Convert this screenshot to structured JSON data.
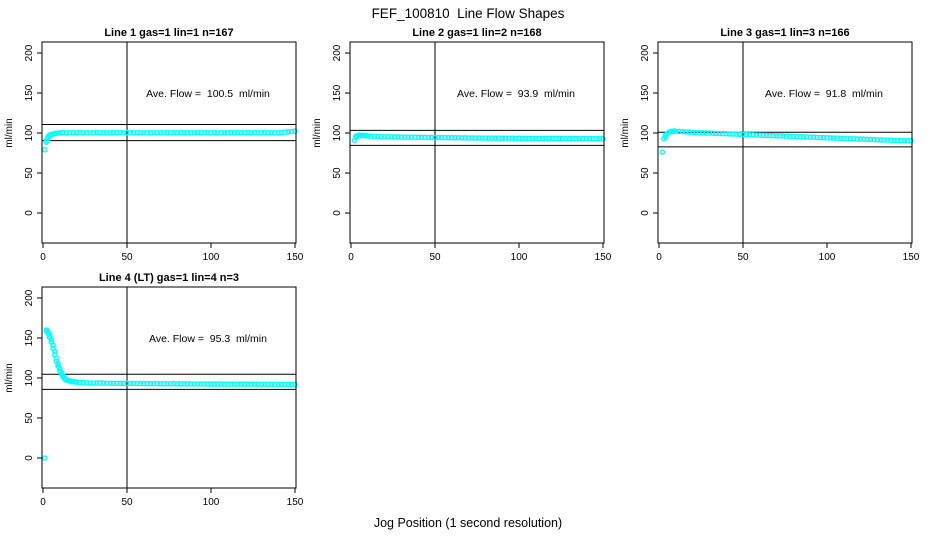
{
  "title": "FEF_100810  Line Flow Shapes",
  "xlabel": "Jog Position (1 second resolution)",
  "point_color": "#00ffff",
  "axis_color": "#000000",
  "chart_data": [
    {
      "type": "scatter",
      "title": "Line 1 gas=1 lin=1 n=167",
      "n": 167,
      "annotation": "Ave. Flow =  100.5  ml/min",
      "ave_flow_ml_min": 100.5,
      "ylabel": "ml/min",
      "xticks": [
        0,
        50,
        100,
        150
      ],
      "yticks": [
        0,
        50,
        100,
        150,
        200
      ],
      "xlim": [
        0,
        150
      ],
      "ylim": [
        0,
        200
      ],
      "grid": false,
      "ref_vline": 50,
      "ref_hlines": [
        110.6,
        90.5
      ],
      "points": [
        [
          1,
          79
        ],
        [
          2,
          88.5
        ],
        [
          2,
          90.5
        ],
        [
          3,
          93
        ],
        [
          3,
          95
        ],
        [
          4,
          96.5
        ],
        [
          4,
          97.5
        ],
        [
          5,
          98
        ],
        [
          6,
          98.8
        ],
        [
          7,
          99.3
        ],
        [
          8,
          99.7
        ],
        [
          9,
          100
        ],
        [
          10,
          100.2
        ],
        [
          12,
          100.5
        ],
        [
          14,
          100.1
        ],
        [
          16,
          100.4
        ],
        [
          18,
          100.3
        ],
        [
          20,
          100.2
        ],
        [
          22,
          100.5
        ],
        [
          24,
          100.1
        ],
        [
          26,
          100.4
        ],
        [
          28,
          100.3
        ],
        [
          30,
          100.2
        ],
        [
          32,
          100.5
        ],
        [
          34,
          100.1
        ],
        [
          36,
          100.4
        ],
        [
          38,
          100.3
        ],
        [
          40,
          100.2
        ],
        [
          42,
          100.5
        ],
        [
          44,
          100.1
        ],
        [
          46,
          100.4
        ],
        [
          48,
          100.3
        ],
        [
          50,
          100.2
        ],
        [
          52,
          100.5
        ],
        [
          54,
          100.1
        ],
        [
          56,
          100.4
        ],
        [
          58,
          100.3
        ],
        [
          60,
          100.2
        ],
        [
          62,
          100.5
        ],
        [
          64,
          100.1
        ],
        [
          66,
          100.4
        ],
        [
          68,
          100.3
        ],
        [
          70,
          100.2
        ],
        [
          72,
          100.5
        ],
        [
          74,
          100.1
        ],
        [
          76,
          100.4
        ],
        [
          78,
          100.3
        ],
        [
          80,
          100.2
        ],
        [
          82,
          100.5
        ],
        [
          84,
          100.1
        ],
        [
          86,
          100.4
        ],
        [
          88,
          100.3
        ],
        [
          90,
          100.2
        ],
        [
          92,
          100.5
        ],
        [
          94,
          100.1
        ],
        [
          96,
          100.4
        ],
        [
          98,
          100.3
        ],
        [
          100,
          100.2
        ],
        [
          102,
          100.5
        ],
        [
          104,
          100.1
        ],
        [
          106,
          100.4
        ],
        [
          108,
          100.3
        ],
        [
          110,
          100.2
        ],
        [
          112,
          100.5
        ],
        [
          114,
          100.1
        ],
        [
          116,
          100.4
        ],
        [
          118,
          100.3
        ],
        [
          120,
          100.2
        ],
        [
          122,
          100.5
        ],
        [
          124,
          100.1
        ],
        [
          126,
          100.4
        ],
        [
          128,
          100.3
        ],
        [
          130,
          100.2
        ],
        [
          132,
          100.5
        ],
        [
          134,
          100.1
        ],
        [
          136,
          100.4
        ],
        [
          138,
          100.3
        ],
        [
          140,
          100.3
        ],
        [
          142,
          100.6
        ],
        [
          144,
          100.9
        ],
        [
          146,
          101.4
        ],
        [
          148,
          101.9
        ],
        [
          150,
          102.4
        ]
      ]
    },
    {
      "type": "scatter",
      "title": "Line 2 gas=1 lin=2 n=168",
      "n": 168,
      "annotation": "Ave. Flow =  93.9  ml/min",
      "ave_flow_ml_min": 93.9,
      "ylabel": "ml/min",
      "xticks": [
        0,
        50,
        100,
        150
      ],
      "yticks": [
        0,
        50,
        100,
        150,
        200
      ],
      "xlim": [
        0,
        150
      ],
      "ylim": [
        0,
        200
      ],
      "grid": false,
      "ref_vline": 50,
      "ref_hlines": [
        103.3,
        84.5
      ],
      "points": [
        [
          2,
          91
        ],
        [
          3,
          94.5
        ],
        [
          3,
          96
        ],
        [
          4,
          96.8
        ],
        [
          5,
          97.2
        ],
        [
          6,
          97.1
        ],
        [
          7,
          96.9
        ],
        [
          8,
          96.7
        ],
        [
          9,
          96.5
        ],
        [
          10,
          96.3
        ],
        [
          12,
          96.1
        ],
        [
          14,
          95.9
        ],
        [
          16,
          95.7
        ],
        [
          18,
          95.5
        ],
        [
          20,
          95.3
        ],
        [
          22,
          95.1
        ],
        [
          24,
          95.2
        ],
        [
          26,
          94.9
        ],
        [
          28,
          95
        ],
        [
          30,
          94.8
        ],
        [
          32,
          94.9
        ],
        [
          34,
          94.7
        ],
        [
          36,
          94.8
        ],
        [
          38,
          94.6
        ],
        [
          40,
          94.7
        ],
        [
          42,
          94.5
        ],
        [
          44,
          94.6
        ],
        [
          46,
          94.4
        ],
        [
          48,
          94.5
        ],
        [
          50,
          94.3
        ],
        [
          52,
          94.4
        ],
        [
          54,
          94.2
        ],
        [
          56,
          94.3
        ],
        [
          58,
          94.1
        ],
        [
          60,
          94.2
        ],
        [
          62,
          94
        ],
        [
          64,
          94.1
        ],
        [
          66,
          93.9
        ],
        [
          68,
          94
        ],
        [
          70,
          93.8
        ],
        [
          72,
          93.9
        ],
        [
          74,
          93.7
        ],
        [
          76,
          93.8
        ],
        [
          78,
          93.6
        ],
        [
          80,
          93.7
        ],
        [
          82,
          93.5
        ],
        [
          84,
          93.6
        ],
        [
          86,
          93.5
        ],
        [
          88,
          93.6
        ],
        [
          90,
          93.4
        ],
        [
          92,
          93.5
        ],
        [
          94,
          93.4
        ],
        [
          96,
          93.5
        ],
        [
          98,
          93.3
        ],
        [
          100,
          93.4
        ],
        [
          102,
          93.3
        ],
        [
          104,
          93.4
        ],
        [
          106,
          93.2
        ],
        [
          108,
          93.3
        ],
        [
          110,
          93.2
        ],
        [
          112,
          93.3
        ],
        [
          114,
          93.1
        ],
        [
          116,
          93.2
        ],
        [
          118,
          93.1
        ],
        [
          120,
          93.2
        ],
        [
          122,
          93
        ],
        [
          124,
          93.1
        ],
        [
          126,
          93
        ],
        [
          128,
          93.1
        ],
        [
          130,
          93
        ],
        [
          132,
          93.1
        ],
        [
          134,
          92.9
        ],
        [
          136,
          93
        ],
        [
          138,
          92.9
        ],
        [
          140,
          93
        ],
        [
          142,
          92.9
        ],
        [
          144,
          93
        ],
        [
          146,
          92.9
        ],
        [
          148,
          93
        ],
        [
          150,
          92.9
        ]
      ]
    },
    {
      "type": "scatter",
      "title": "Line 3 gas=1 lin=3 n=166",
      "n": 166,
      "annotation": "Ave. Flow =  91.8  ml/min",
      "ave_flow_ml_min": 91.8,
      "ylabel": "ml/min",
      "xticks": [
        0,
        50,
        100,
        150
      ],
      "yticks": [
        0,
        50,
        100,
        150,
        200
      ],
      "xlim": [
        0,
        150
      ],
      "ylim": [
        0,
        200
      ],
      "grid": false,
      "ref_vline": 50,
      "ref_hlines": [
        101.0,
        82.6
      ],
      "points": [
        [
          2,
          76
        ],
        [
          3,
          93
        ],
        [
          4,
          95
        ],
        [
          4,
          97.5
        ],
        [
          5,
          99.5
        ],
        [
          6,
          101
        ],
        [
          7,
          101.8
        ],
        [
          8,
          102.2
        ],
        [
          9,
          102.4
        ],
        [
          10,
          102.3
        ],
        [
          12,
          102
        ],
        [
          14,
          101.7
        ],
        [
          16,
          101.4
        ],
        [
          18,
          101.1
        ],
        [
          20,
          100.8
        ],
        [
          22,
          100.5
        ],
        [
          24,
          100.3
        ],
        [
          26,
          100.2
        ],
        [
          28,
          100
        ],
        [
          30,
          99.9
        ],
        [
          32,
          99.7
        ],
        [
          34,
          99.5
        ],
        [
          36,
          99.4
        ],
        [
          38,
          99.2
        ],
        [
          40,
          99
        ],
        [
          42,
          98.9
        ],
        [
          44,
          98.7
        ],
        [
          46,
          98.5
        ],
        [
          48,
          98.4
        ],
        [
          50,
          98.2
        ],
        [
          52,
          98
        ],
        [
          54,
          97.9
        ],
        [
          56,
          97.7
        ],
        [
          58,
          97.5
        ],
        [
          60,
          97.4
        ],
        [
          62,
          97.2
        ],
        [
          64,
          97
        ],
        [
          66,
          96.9
        ],
        [
          68,
          96.7
        ],
        [
          70,
          96.5
        ],
        [
          72,
          96.4
        ],
        [
          74,
          96.2
        ],
        [
          76,
          96
        ],
        [
          78,
          95.9
        ],
        [
          80,
          95.7
        ],
        [
          82,
          95.5
        ],
        [
          84,
          95.4
        ],
        [
          86,
          95.2
        ],
        [
          88,
          95
        ],
        [
          90,
          94.9
        ],
        [
          92,
          94.7
        ],
        [
          94,
          94.5
        ],
        [
          96,
          94.4
        ],
        [
          98,
          94.2
        ],
        [
          100,
          94
        ],
        [
          102,
          93.9
        ],
        [
          104,
          93.7
        ],
        [
          106,
          93.5
        ],
        [
          108,
          93.4
        ],
        [
          110,
          93.2
        ],
        [
          112,
          93
        ],
        [
          114,
          92.9
        ],
        [
          116,
          92.7
        ],
        [
          118,
          92.5
        ],
        [
          120,
          92.4
        ],
        [
          122,
          92.2
        ],
        [
          124,
          92
        ],
        [
          126,
          91.9
        ],
        [
          128,
          91.7
        ],
        [
          130,
          91.5
        ],
        [
          132,
          91.4
        ],
        [
          134,
          91.2
        ],
        [
          136,
          91
        ],
        [
          138,
          90.9
        ],
        [
          140,
          90.7
        ],
        [
          142,
          90.6
        ],
        [
          144,
          90.5
        ],
        [
          146,
          90.4
        ],
        [
          148,
          90.4
        ],
        [
          150,
          90.4
        ]
      ]
    },
    {
      "type": "scatter",
      "title": "Line 4 (LT) gas=1 lin=4 n=3",
      "n": 3,
      "annotation": "Ave. Flow =  95.3  ml/min",
      "ave_flow_ml_min": 95.3,
      "ylabel": "ml/min",
      "xticks": [
        0,
        50,
        100,
        150
      ],
      "yticks": [
        0,
        50,
        100,
        150,
        200
      ],
      "xlim": [
        0,
        150
      ],
      "ylim": [
        0,
        200
      ],
      "grid": false,
      "ref_vline": 50,
      "ref_hlines": [
        104.8,
        85.8
      ],
      "points": [
        [
          1,
          0
        ],
        [
          2,
          160
        ],
        [
          2,
          159
        ],
        [
          3,
          158
        ],
        [
          3,
          156
        ],
        [
          4,
          154
        ],
        [
          4,
          151
        ],
        [
          5,
          148
        ],
        [
          5,
          145
        ],
        [
          6,
          141
        ],
        [
          6,
          137
        ],
        [
          7,
          133
        ],
        [
          7,
          129
        ],
        [
          8,
          125
        ],
        [
          8,
          121
        ],
        [
          9,
          118
        ],
        [
          9,
          115
        ],
        [
          10,
          112
        ],
        [
          10,
          109
        ],
        [
          11,
          106.5
        ],
        [
          11,
          104.5
        ],
        [
          12,
          102.5
        ],
        [
          12,
          101
        ],
        [
          13,
          99.8
        ],
        [
          13,
          98.8
        ],
        [
          14,
          98
        ],
        [
          14,
          97.3
        ],
        [
          15,
          96.7
        ],
        [
          16,
          96.2
        ],
        [
          17,
          95.8
        ],
        [
          18,
          95.4
        ],
        [
          19,
          95.1
        ],
        [
          20,
          94.8
        ],
        [
          22,
          94.4
        ],
        [
          24,
          94.1
        ],
        [
          26,
          93.8
        ],
        [
          28,
          93.7
        ],
        [
          30,
          93.7
        ],
        [
          32,
          93.6
        ],
        [
          34,
          93.6
        ],
        [
          36,
          93.5
        ],
        [
          38,
          93.5
        ],
        [
          40,
          93.4
        ],
        [
          42,
          93.4
        ],
        [
          44,
          93.3
        ],
        [
          46,
          93.3
        ],
        [
          48,
          93.2
        ],
        [
          50,
          93.2
        ],
        [
          52,
          93.2
        ],
        [
          54,
          93.1
        ],
        [
          56,
          93.1
        ],
        [
          58,
          93
        ],
        [
          60,
          93
        ],
        [
          62,
          93
        ],
        [
          64,
          92.9
        ],
        [
          66,
          92.9
        ],
        [
          68,
          92.9
        ],
        [
          70,
          92.8
        ],
        [
          72,
          92.8
        ],
        [
          74,
          92.8
        ],
        [
          76,
          92.7
        ],
        [
          78,
          92.7
        ],
        [
          80,
          92.7
        ],
        [
          82,
          92.6
        ],
        [
          84,
          92.6
        ],
        [
          86,
          92.6
        ],
        [
          88,
          92.6
        ],
        [
          90,
          92.5
        ],
        [
          92,
          92.5
        ],
        [
          94,
          92.5
        ],
        [
          96,
          92.5
        ],
        [
          98,
          92.4
        ],
        [
          100,
          92.4
        ],
        [
          102,
          92.4
        ],
        [
          104,
          92.4
        ],
        [
          106,
          92.4
        ],
        [
          108,
          92.3
        ],
        [
          110,
          92.3
        ],
        [
          112,
          92.3
        ],
        [
          114,
          92.3
        ],
        [
          116,
          92.3
        ],
        [
          118,
          92.2
        ],
        [
          120,
          92.2
        ],
        [
          122,
          92.2
        ],
        [
          124,
          92.2
        ],
        [
          126,
          92.2
        ],
        [
          128,
          92.2
        ],
        [
          130,
          92.1
        ],
        [
          132,
          92.1
        ],
        [
          134,
          92.1
        ],
        [
          136,
          92.1
        ],
        [
          138,
          92.1
        ],
        [
          140,
          92
        ],
        [
          142,
          92
        ],
        [
          144,
          92
        ],
        [
          146,
          92
        ],
        [
          148,
          92
        ],
        [
          150,
          92
        ]
      ]
    }
  ]
}
